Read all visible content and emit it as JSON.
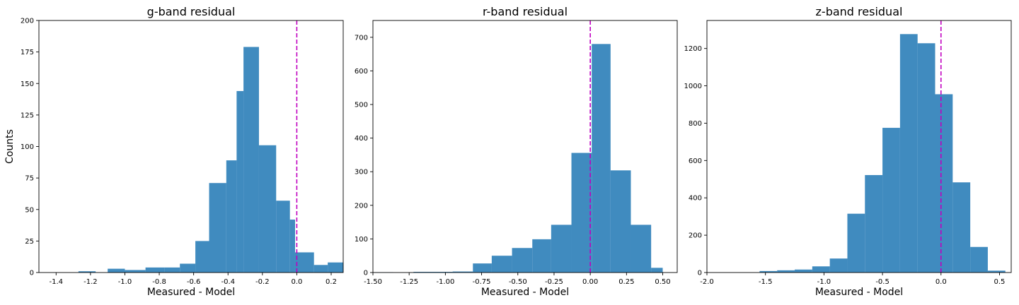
{
  "figure": {
    "bar_color": "#1f77b4",
    "bar_alpha": 0.85,
    "refline_color": "#c000c0"
  },
  "chart_data": [
    {
      "type": "bar",
      "title": "g-band residual",
      "xlabel": "Measured - Model",
      "ylabel": "Counts",
      "xlim": [
        -1.5,
        0.27
      ],
      "ylim": [
        0,
        200
      ],
      "xticks": [
        -1.4,
        -1.2,
        -1.0,
        -0.8,
        -0.6,
        -0.4,
        -0.2,
        0.0,
        0.2
      ],
      "xtick_labels": [
        "-1.4",
        "-1.2",
        "-1.0",
        "-0.8",
        "-0.6",
        "-0.4",
        "-0.2",
        "0.0",
        "0.2"
      ],
      "yticks": [
        0,
        25,
        50,
        75,
        100,
        125,
        150,
        175,
        200
      ],
      "ytick_labels": [
        "0",
        "25",
        "50",
        "75",
        "100",
        "125",
        "150",
        "175",
        "200"
      ],
      "bin_edges": [
        -1.27,
        -1.17,
        -1.1,
        -1.0,
        -0.88,
        -0.77,
        -0.68,
        -0.59,
        -0.51,
        -0.41,
        -0.35,
        -0.31,
        -0.22,
        -0.12,
        -0.04,
        -0.01,
        0.1,
        0.18,
        0.27
      ],
      "counts": [
        1,
        0,
        3,
        2,
        4,
        4,
        7,
        25,
        71,
        89,
        144,
        179,
        101,
        57,
        42,
        16,
        6,
        8,
        4
      ],
      "reference_x": 0.0,
      "grid": false
    },
    {
      "type": "bar",
      "title": "r-band residual",
      "xlabel": "Measured - Model",
      "ylabel": "",
      "xlim": [
        -1.5,
        0.6
      ],
      "ylim": [
        0,
        750
      ],
      "xticks": [
        -1.5,
        -1.25,
        -1.0,
        -0.75,
        -0.5,
        -0.25,
        0.0,
        0.25,
        0.5
      ],
      "xtick_labels": [
        "-1.50",
        "-1.25",
        "-1.00",
        "-0.75",
        "-0.50",
        "-0.25",
        "0.00",
        "0.25",
        "0.50"
      ],
      "yticks": [
        0,
        100,
        200,
        300,
        400,
        500,
        600,
        700
      ],
      "ytick_labels": [
        "0",
        "100",
        "200",
        "300",
        "400",
        "500",
        "600",
        "700"
      ],
      "bin_edges": [
        -1.5,
        -1.36,
        -1.22,
        -1.09,
        -0.95,
        -0.81,
        -0.68,
        -0.54,
        -0.4,
        -0.27,
        -0.13,
        0.01,
        0.14,
        0.28,
        0.42,
        0.5
      ],
      "counts": [
        1,
        0,
        2,
        2,
        3,
        27,
        50,
        73,
        99,
        142,
        356,
        680,
        304,
        142,
        14
      ],
      "reference_x": 0.0,
      "grid": false
    },
    {
      "type": "bar",
      "title": "z-band residual",
      "xlabel": "Measured - Model",
      "ylabel": "",
      "xlim": [
        -2.0,
        0.6
      ],
      "ylim": [
        0,
        1350
      ],
      "xticks": [
        -2.0,
        -1.5,
        -1.0,
        -0.5,
        0.0,
        0.5
      ],
      "xtick_labels": [
        "-2.0",
        "-1.5",
        "-1.0",
        "-0.5",
        "0.0",
        "0.5"
      ],
      "yticks": [
        0,
        200,
        400,
        600,
        800,
        1000,
        1200
      ],
      "ytick_labels": [
        "0",
        "200",
        "400",
        "600",
        "800",
        "1000",
        "1200"
      ],
      "bin_edges": [
        -1.55,
        -1.4,
        -1.25,
        -1.1,
        -0.95,
        -0.8,
        -0.65,
        -0.5,
        -0.35,
        -0.2,
        -0.05,
        0.1,
        0.25,
        0.4,
        0.55
      ],
      "counts": [
        8,
        12,
        16,
        33,
        75,
        315,
        522,
        775,
        1277,
        1228,
        955,
        483,
        137,
        10
      ],
      "reference_x": 0.0,
      "grid": false
    }
  ]
}
